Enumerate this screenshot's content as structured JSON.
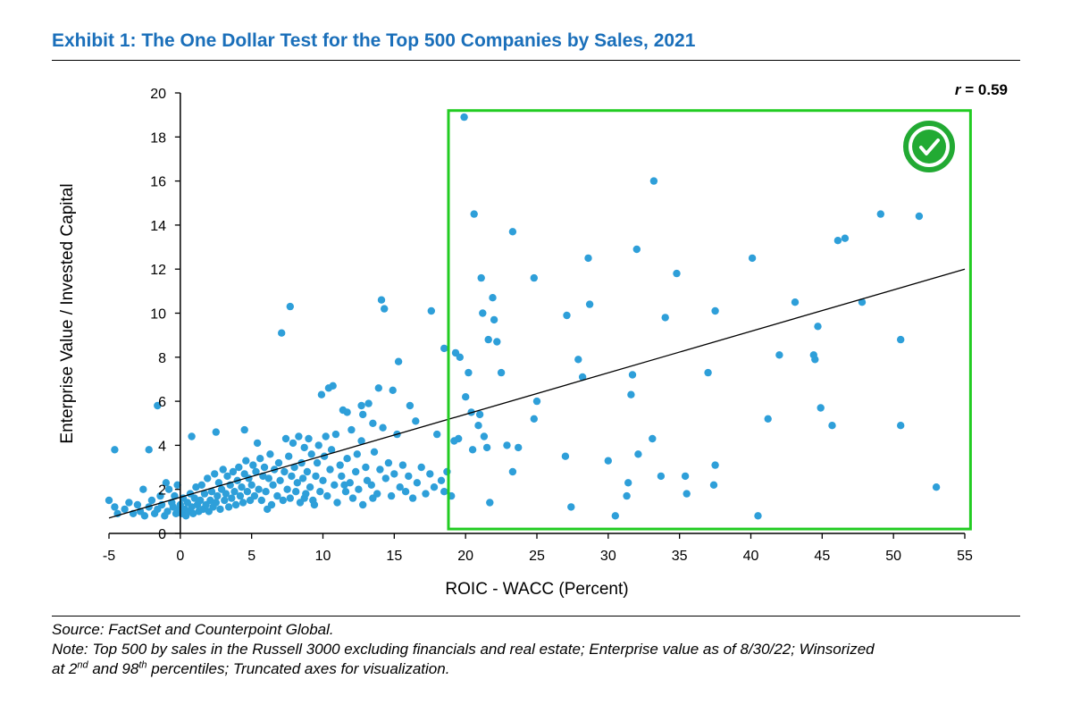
{
  "title": "Exhibit 1: The One Dollar Test for the Top 500 Companies by Sales, 2021",
  "source": "Source: FactSet and Counterpoint Global.",
  "note": {
    "line1": "Note: Top 500 by sales in the Russell 3000 excluding financials and real estate; Enterprise value as of 8/30/22; Winsorized",
    "line2_before": "at 2",
    "sup1": "nd",
    "line2_middle": " and 98",
    "sup2": "th",
    "line2_after": " percentiles; Truncated axes for visualization."
  },
  "colors": {
    "title": "#1a6fba",
    "points": "#2e9fd9",
    "box": "#22cc22",
    "check": "#22aa33"
  },
  "chart_data": {
    "type": "scatter",
    "xlabel": "ROIC - WACC (Percent)",
    "ylabel": "Enterprise Value / Invested Capital",
    "xlim": [
      -5,
      55
    ],
    "ylim": [
      0,
      20
    ],
    "xticks": [
      -5,
      0,
      5,
      10,
      15,
      20,
      25,
      30,
      35,
      40,
      45,
      50,
      55
    ],
    "yticks": [
      0,
      2,
      4,
      6,
      8,
      10,
      12,
      14,
      16,
      18,
      20
    ],
    "r_label": "r",
    "r_value": "= 0.59",
    "trendline": {
      "x": [
        -5,
        55
      ],
      "y": [
        0.7,
        12.0
      ]
    },
    "highlight_box": {
      "x": [
        18.8,
        55.4
      ],
      "y": [
        0.2,
        19.2
      ],
      "icon": "check-circle-icon"
    },
    "points": [
      [
        -4.6,
        3.8
      ],
      [
        -2.2,
        3.8
      ],
      [
        -1.6,
        5.8
      ],
      [
        -1.0,
        2.3
      ],
      [
        0.8,
        4.4
      ],
      [
        2.5,
        4.6
      ],
      [
        4.5,
        4.7
      ],
      [
        7.1,
        9.1
      ],
      [
        7.7,
        10.3
      ],
      [
        10.4,
        6.6
      ],
      [
        10.7,
        6.7
      ],
      [
        14.1,
        10.6
      ],
      [
        14.3,
        10.2
      ],
      [
        17.6,
        10.1
      ],
      [
        18.5,
        8.4
      ],
      [
        15.3,
        7.8
      ],
      [
        13.9,
        6.6
      ],
      [
        14.9,
        6.5
      ],
      [
        16.1,
        5.8
      ],
      [
        16.5,
        5.1
      ],
      [
        12.7,
        5.8
      ],
      [
        12.8,
        5.4
      ],
      [
        11.7,
        5.5
      ],
      [
        9.9,
        6.3
      ],
      [
        13.5,
        5.0
      ],
      [
        19.9,
        18.9
      ],
      [
        20.6,
        14.5
      ],
      [
        23.3,
        13.7
      ],
      [
        21.1,
        11.6
      ],
      [
        21.9,
        10.7
      ],
      [
        21.2,
        10.0
      ],
      [
        22.0,
        9.7
      ],
      [
        21.6,
        8.8
      ],
      [
        22.2,
        8.7
      ],
      [
        19.3,
        8.2
      ],
      [
        19.6,
        8.0
      ],
      [
        20.2,
        7.3
      ],
      [
        22.5,
        7.3
      ],
      [
        20.0,
        6.2
      ],
      [
        20.4,
        5.5
      ],
      [
        21.0,
        5.4
      ],
      [
        20.9,
        4.9
      ],
      [
        21.3,
        4.4
      ],
      [
        21.5,
        3.9
      ],
      [
        22.9,
        4.0
      ],
      [
        20.5,
        3.8
      ],
      [
        19.5,
        4.3
      ],
      [
        19.2,
        4.2
      ],
      [
        23.7,
        3.9
      ],
      [
        23.3,
        2.8
      ],
      [
        21.7,
        1.4
      ],
      [
        24.8,
        11.6
      ],
      [
        28.6,
        12.5
      ],
      [
        28.7,
        10.4
      ],
      [
        27.1,
        9.9
      ],
      [
        27.9,
        7.9
      ],
      [
        28.2,
        7.1
      ],
      [
        25.0,
        6.0
      ],
      [
        24.8,
        5.2
      ],
      [
        27.0,
        3.5
      ],
      [
        27.4,
        1.2
      ],
      [
        30.0,
        3.3
      ],
      [
        30.5,
        0.8
      ],
      [
        31.7,
        7.2
      ],
      [
        31.6,
        6.3
      ],
      [
        31.4,
        2.3
      ],
      [
        31.3,
        1.7
      ],
      [
        32.0,
        12.9
      ],
      [
        33.2,
        16.0
      ],
      [
        34.8,
        11.8
      ],
      [
        34.0,
        9.8
      ],
      [
        33.1,
        4.3
      ],
      [
        33.7,
        2.6
      ],
      [
        35.4,
        2.6
      ],
      [
        35.5,
        1.8
      ],
      [
        37.0,
        7.3
      ],
      [
        37.5,
        10.1
      ],
      [
        37.5,
        3.1
      ],
      [
        37.4,
        2.2
      ],
      [
        32.1,
        3.6
      ],
      [
        40.1,
        12.5
      ],
      [
        41.2,
        5.2
      ],
      [
        42.0,
        8.1
      ],
      [
        43.1,
        10.5
      ],
      [
        44.4,
        8.1
      ],
      [
        44.5,
        7.9
      ],
      [
        44.7,
        9.4
      ],
      [
        44.9,
        5.7
      ],
      [
        45.7,
        4.9
      ],
      [
        46.1,
        13.3
      ],
      [
        46.6,
        13.4
      ],
      [
        47.8,
        10.5
      ],
      [
        49.1,
        14.5
      ],
      [
        50.5,
        8.8
      ],
      [
        50.5,
        4.9
      ],
      [
        51.8,
        14.4
      ],
      [
        53.0,
        2.1
      ],
      [
        40.5,
        0.8
      ],
      [
        -5.0,
        1.5
      ],
      [
        -4.6,
        1.2
      ],
      [
        -4.4,
        0.9
      ],
      [
        -3.9,
        1.1
      ],
      [
        -3.6,
        1.4
      ],
      [
        -3.3,
        0.9
      ],
      [
        -3.0,
        1.3
      ],
      [
        -2.8,
        1.0
      ],
      [
        -2.6,
        2.0
      ],
      [
        -2.5,
        0.8
      ],
      [
        -2.2,
        1.2
      ],
      [
        -2.0,
        1.5
      ],
      [
        -1.8,
        0.9
      ],
      [
        -1.6,
        1.1
      ],
      [
        -1.4,
        1.7
      ],
      [
        -1.3,
        1.3
      ],
      [
        -1.1,
        0.8
      ],
      [
        -0.9,
        1.0
      ],
      [
        -0.8,
        2.0
      ],
      [
        -0.6,
        1.4
      ],
      [
        -0.5,
        1.2
      ],
      [
        -0.4,
        1.7
      ],
      [
        -0.3,
        0.9
      ],
      [
        -0.2,
        2.2
      ],
      [
        -0.1,
        1.1
      ],
      [
        0.0,
        1.3
      ],
      [
        0.1,
        0.9
      ],
      [
        0.2,
        1.6
      ],
      [
        0.3,
        1.1
      ],
      [
        0.4,
        0.8
      ],
      [
        0.5,
        1.4
      ],
      [
        0.6,
        1.0
      ],
      [
        0.7,
        1.8
      ],
      [
        0.8,
        1.2
      ],
      [
        0.9,
        0.9
      ],
      [
        1.0,
        1.6
      ],
      [
        1.1,
        2.1
      ],
      [
        1.2,
        1.3
      ],
      [
        1.3,
        1.0
      ],
      [
        1.4,
        1.5
      ],
      [
        1.5,
        2.2
      ],
      [
        1.6,
        1.1
      ],
      [
        1.7,
        1.8
      ],
      [
        1.8,
        1.3
      ],
      [
        1.9,
        2.5
      ],
      [
        2.0,
        1.0
      ],
      [
        2.1,
        1.5
      ],
      [
        2.2,
        1.9
      ],
      [
        2.3,
        1.2
      ],
      [
        2.4,
        2.7
      ],
      [
        2.5,
        1.4
      ],
      [
        2.6,
        1.7
      ],
      [
        2.7,
        2.3
      ],
      [
        2.8,
        1.1
      ],
      [
        2.9,
        2.0
      ],
      [
        3.0,
        2.9
      ],
      [
        3.1,
        1.5
      ],
      [
        3.2,
        1.8
      ],
      [
        3.3,
        2.6
      ],
      [
        3.4,
        1.2
      ],
      [
        3.5,
        2.2
      ],
      [
        3.6,
        1.6
      ],
      [
        3.7,
        2.8
      ],
      [
        3.8,
        1.9
      ],
      [
        3.9,
        1.3
      ],
      [
        4.0,
        2.4
      ],
      [
        4.1,
        3.0
      ],
      [
        4.2,
        1.7
      ],
      [
        4.3,
        2.1
      ],
      [
        4.4,
        1.4
      ],
      [
        4.5,
        2.7
      ],
      [
        4.6,
        3.3
      ],
      [
        4.7,
        1.9
      ],
      [
        4.8,
        2.5
      ],
      [
        4.9,
        1.5
      ],
      [
        5.0,
        2.2
      ],
      [
        5.1,
        3.1
      ],
      [
        5.2,
        1.7
      ],
      [
        5.3,
        2.8
      ],
      [
        5.4,
        4.1
      ],
      [
        5.5,
        2.0
      ],
      [
        5.6,
        3.4
      ],
      [
        5.7,
        1.5
      ],
      [
        5.8,
        2.6
      ],
      [
        5.9,
        3.0
      ],
      [
        6.0,
        1.9
      ],
      [
        6.2,
        2.5
      ],
      [
        6.3,
        3.6
      ],
      [
        6.4,
        1.3
      ],
      [
        6.5,
        2.2
      ],
      [
        6.6,
        2.9
      ],
      [
        6.8,
        1.7
      ],
      [
        6.9,
        3.2
      ],
      [
        7.0,
        2.4
      ],
      [
        7.2,
        1.5
      ],
      [
        7.3,
        2.8
      ],
      [
        7.4,
        4.3
      ],
      [
        7.5,
        2.0
      ],
      [
        7.6,
        3.5
      ],
      [
        7.7,
        1.6
      ],
      [
        7.8,
        2.6
      ],
      [
        7.9,
        4.1
      ],
      [
        8.0,
        3.0
      ],
      [
        8.1,
        1.9
      ],
      [
        8.2,
        2.3
      ],
      [
        8.3,
        4.4
      ],
      [
        8.4,
        1.4
      ],
      [
        8.5,
        3.2
      ],
      [
        8.6,
        2.5
      ],
      [
        8.7,
        3.9
      ],
      [
        8.8,
        1.8
      ],
      [
        8.9,
        2.8
      ],
      [
        9.0,
        4.3
      ],
      [
        9.1,
        2.1
      ],
      [
        9.2,
        3.6
      ],
      [
        9.3,
        1.5
      ],
      [
        9.5,
        2.6
      ],
      [
        9.6,
        3.2
      ],
      [
        9.7,
        4.0
      ],
      [
        9.8,
        1.9
      ],
      [
        10.0,
        2.4
      ],
      [
        10.1,
        3.5
      ],
      [
        10.2,
        4.4
      ],
      [
        10.3,
        1.7
      ],
      [
        10.5,
        2.9
      ],
      [
        10.6,
        3.8
      ],
      [
        10.8,
        2.2
      ],
      [
        10.9,
        4.5
      ],
      [
        11.0,
        1.4
      ],
      [
        11.2,
        3.1
      ],
      [
        11.3,
        2.6
      ],
      [
        11.4,
        5.6
      ],
      [
        11.6,
        1.9
      ],
      [
        11.7,
        3.4
      ],
      [
        11.9,
        2.3
      ],
      [
        12.0,
        4.7
      ],
      [
        12.1,
        1.6
      ],
      [
        12.3,
        2.8
      ],
      [
        12.4,
        3.6
      ],
      [
        12.5,
        2.0
      ],
      [
        12.7,
        4.2
      ],
      [
        12.8,
        1.3
      ],
      [
        13.0,
        3.0
      ],
      [
        13.1,
        2.4
      ],
      [
        13.2,
        5.9
      ],
      [
        13.4,
        2.2
      ],
      [
        13.6,
        3.7
      ],
      [
        13.8,
        1.8
      ],
      [
        14.0,
        2.9
      ],
      [
        14.2,
        4.8
      ],
      [
        14.4,
        2.5
      ],
      [
        14.6,
        3.2
      ],
      [
        14.8,
        1.7
      ],
      [
        15.0,
        2.7
      ],
      [
        15.2,
        4.5
      ],
      [
        15.4,
        2.1
      ],
      [
        15.6,
        3.1
      ],
      [
        15.8,
        1.9
      ],
      [
        16.0,
        2.6
      ],
      [
        16.3,
        1.6
      ],
      [
        16.6,
        2.3
      ],
      [
        16.9,
        3.0
      ],
      [
        17.2,
        1.8
      ],
      [
        17.5,
        2.7
      ],
      [
        17.8,
        2.1
      ],
      [
        18.0,
        4.5
      ],
      [
        18.3,
        2.4
      ],
      [
        18.5,
        1.9
      ],
      [
        18.7,
        2.8
      ],
      [
        19.0,
        1.7
      ],
      [
        13.5,
        1.6
      ],
      [
        11.5,
        2.2
      ],
      [
        9.4,
        1.3
      ],
      [
        8.7,
        1.6
      ],
      [
        6.1,
        1.1
      ]
    ]
  }
}
